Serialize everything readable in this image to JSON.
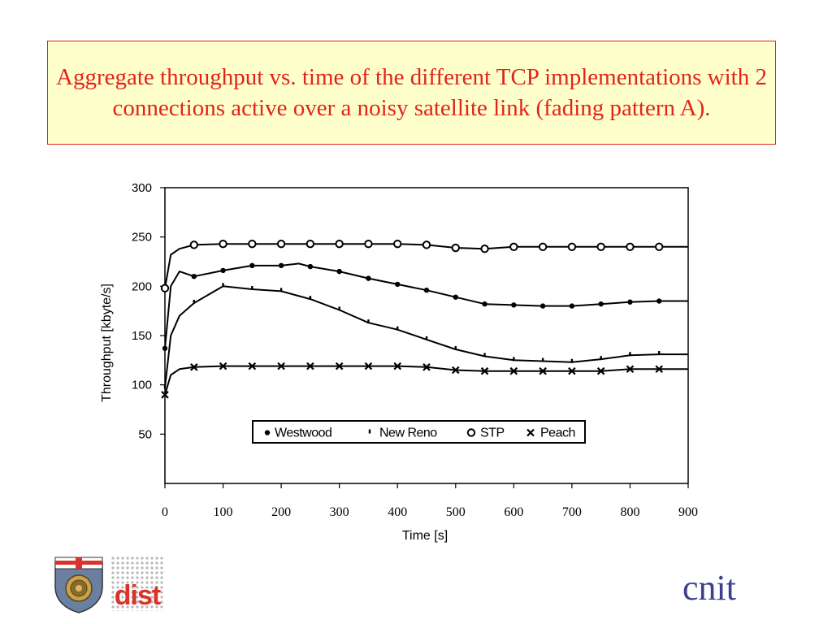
{
  "slide": {
    "title": "Aggregate throughput vs. time of the different TCP implementations with 2 connections active over a noisy satellite link (fading pattern A).",
    "colors": {
      "title_text": "#e2231a",
      "title_border": "#e2231a",
      "title_fill": "#ffffcc",
      "logo_text": "#d9332a",
      "brand_text": "#3a3f8f"
    },
    "logos": {
      "left_crest": "university-crest-icon",
      "dist": "dist",
      "cnit": "cnit"
    }
  },
  "chart_data": {
    "type": "line",
    "title": "",
    "xlabel": "Time [s]",
    "ylabel": "Throughput [kbyte/s]",
    "xlim": [
      0,
      900
    ],
    "ylim": [
      0,
      300
    ],
    "xticks": [
      0,
      100,
      200,
      300,
      400,
      500,
      600,
      700,
      800,
      900
    ],
    "yticks": [
      50,
      100,
      150,
      200,
      250,
      300
    ],
    "grid": false,
    "legend_position": "center inside plot",
    "series": [
      {
        "name": "Westwood",
        "marker": "dot",
        "x": [
          0,
          10,
          25,
          50,
          100,
          150,
          200,
          230,
          250,
          300,
          350,
          400,
          450,
          500,
          550,
          600,
          650,
          700,
          750,
          800,
          850,
          900
        ],
        "y": [
          137,
          200,
          215,
          210,
          216,
          221,
          221,
          223,
          220,
          215,
          208,
          202,
          196,
          189,
          182,
          181,
          180,
          180,
          182,
          184,
          185,
          185
        ]
      },
      {
        "name": "New Reno",
        "marker": "dash",
        "x": [
          0,
          10,
          25,
          50,
          100,
          150,
          200,
          250,
          300,
          350,
          400,
          450,
          500,
          550,
          600,
          650,
          700,
          750,
          800,
          850,
          900
        ],
        "y": [
          97,
          150,
          170,
          183,
          200,
          197,
          195,
          187,
          176,
          163,
          156,
          146,
          136,
          129,
          125,
          124,
          123,
          126,
          130,
          131,
          131
        ]
      },
      {
        "name": "STP",
        "marker": "circle",
        "x": [
          0,
          10,
          25,
          50,
          100,
          150,
          200,
          250,
          300,
          350,
          400,
          450,
          500,
          550,
          600,
          650,
          700,
          750,
          800,
          850,
          900
        ],
        "y": [
          198,
          232,
          238,
          242,
          243,
          243,
          243,
          243,
          243,
          243,
          243,
          242,
          239,
          238,
          240,
          240,
          240,
          240,
          240,
          240,
          240
        ]
      },
      {
        "name": "Peach",
        "marker": "x",
        "x": [
          0,
          10,
          25,
          50,
          100,
          150,
          200,
          250,
          300,
          350,
          400,
          450,
          500,
          550,
          600,
          650,
          700,
          750,
          800,
          850,
          900
        ],
        "y": [
          90,
          110,
          116,
          118,
          119,
          119,
          119,
          119,
          119,
          119,
          119,
          118,
          115,
          114,
          114,
          114,
          114,
          114,
          116,
          116,
          116
        ]
      }
    ]
  }
}
